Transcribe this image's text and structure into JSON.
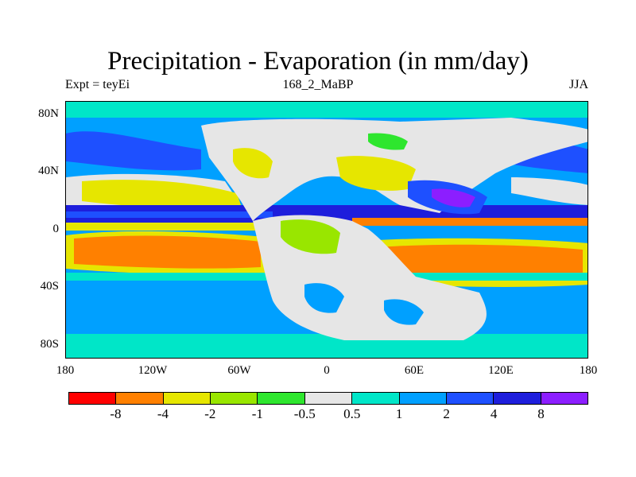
{
  "title": "Precipitation - Evaporation (in mm/day)",
  "left_string": "Expt = teyEi",
  "center_string": "168_2_MaBP",
  "right_string": "JJA",
  "lat_labels": [
    "80N",
    "40N",
    "0",
    "40S",
    "80S"
  ],
  "lon_labels": [
    "180",
    "120W",
    "60W",
    "0",
    "60E",
    "120E",
    "180"
  ],
  "colorbar": {
    "colors": [
      "#ff0000",
      "#ff8000",
      "#e6e600",
      "#99e600",
      "#2ee62e",
      "#e6e6e6",
      "#00e6c8",
      "#00a0ff",
      "#1e50ff",
      "#1e1edc",
      "#8c1eff"
    ],
    "labels": [
      "-8",
      "-4",
      "-2",
      "-1",
      "-0.5",
      "0.5",
      "1",
      "2",
      "4",
      "8"
    ]
  },
  "map_colors": {
    "ocean_wet": "#00a0ff",
    "ocean_very_wet": "#1e50ff",
    "itcz": "#1e1edc",
    "subtropic_dry": "#ff8000",
    "dry_mod": "#e6e600",
    "land_neutral": "#e6e6e6",
    "light_teal": "#00e6c8",
    "green": "#2ee62e",
    "lime": "#99e600"
  }
}
